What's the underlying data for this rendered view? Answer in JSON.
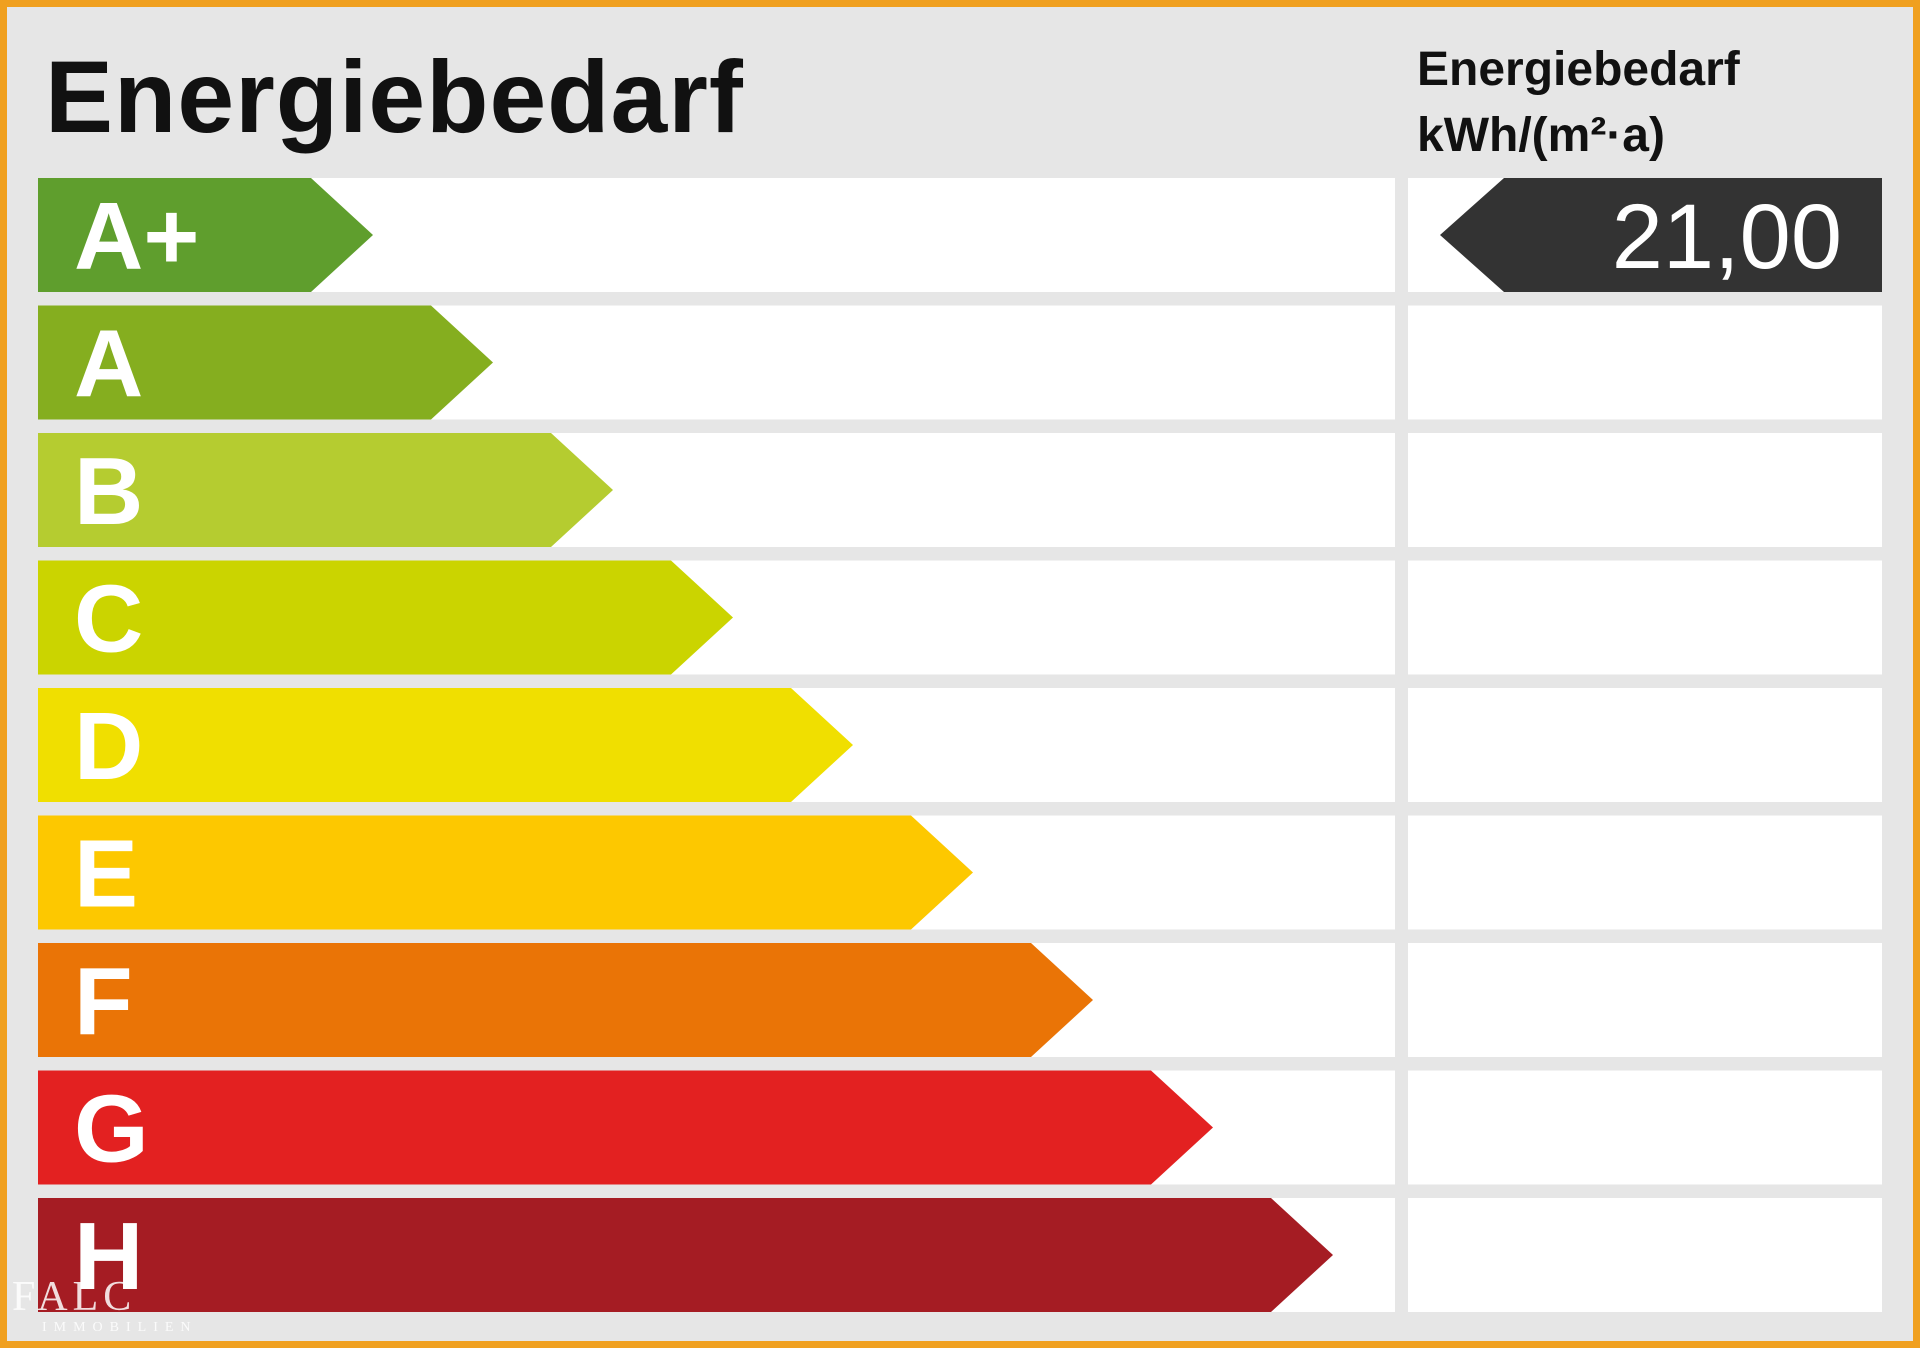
{
  "chart_data": {
    "type": "bar",
    "title": "Energiebedarf",
    "value_column_header": [
      "Energiebedarf",
      "kWh/(m²·a)"
    ],
    "categories": [
      "A+",
      "A",
      "B",
      "C",
      "D",
      "E",
      "F",
      "G",
      "H"
    ],
    "values": [
      1,
      2,
      3,
      4,
      5,
      6,
      7,
      8,
      9
    ],
    "colors": [
      "#5f9e2d",
      "#85ae1f",
      "#b5cc30",
      "#cbd400",
      "#f0df00",
      "#fdc800",
      "#ea7406",
      "#e32121",
      "#a51c23"
    ],
    "indicator": {
      "category": "A+",
      "value_label": "21,00",
      "color": "#333333"
    },
    "legend": "none",
    "grid": false
  },
  "watermark": {
    "main": "FALC",
    "sub": "IMMOBILIEN"
  }
}
